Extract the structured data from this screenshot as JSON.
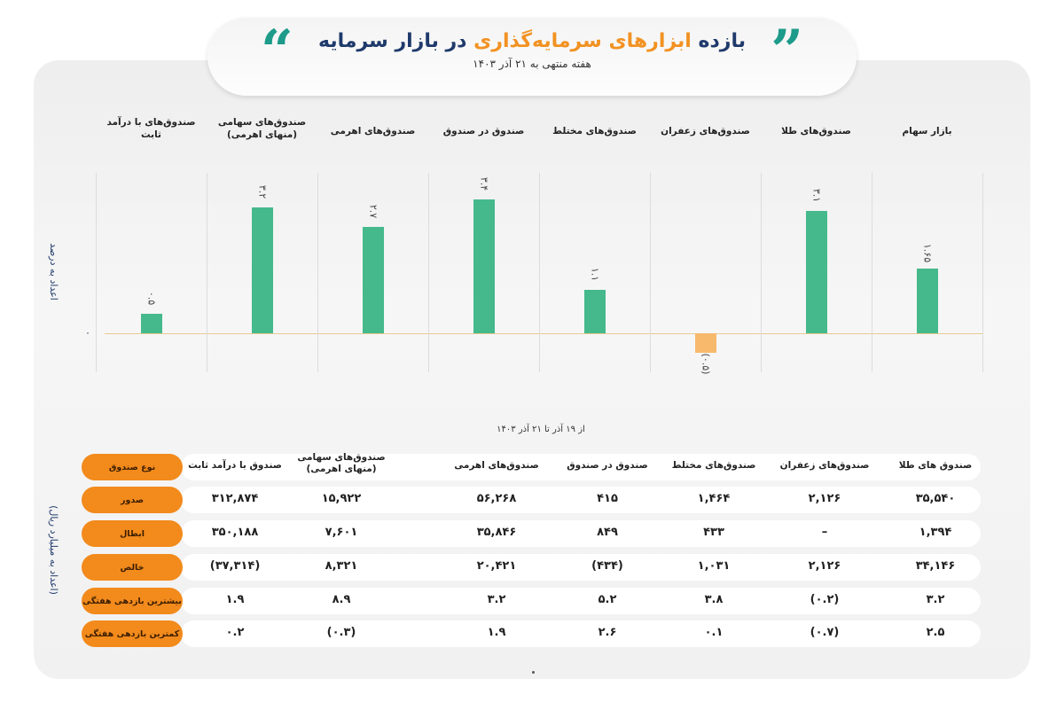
{
  "header": {
    "title_part1": "بازده",
    "title_highlight": "ابزارهای سرمایه‌گذاری",
    "title_part2": "در بازار سرمایه",
    "subtitle": "هفته منتهی به ۲۱ آذر ۱۴۰۳",
    "quote_left": "“",
    "quote_right": "”"
  },
  "chart_data": {
    "type": "bar",
    "title": "بازده ابزارهای سرمایه‌گذاری در بازار سرمایه",
    "ylabel": "اعداد به درصد",
    "zero_tick": "۰",
    "categories": [
      "بازار سهام",
      "صندوق‌های طلا",
      "صندوق‌های زعفران",
      "صندوق‌های مختلط",
      "صندوق در صندوق",
      "صندوق‌های اهرمی",
      "صندوق‌های سهامی (منهای اهرمی)",
      "صندوق‌های با درآمد ثابت"
    ],
    "values": [
      1.65,
      3.1,
      -0.5,
      1.1,
      3.4,
      2.7,
      3.2,
      0.5
    ],
    "value_labels": [
      "۱.۶۵",
      "۳.۱",
      "(۰.۵)",
      "۱.۱",
      "۳.۴",
      "۲.۷",
      "۳.۲",
      "۰.۵"
    ],
    "ylim": [
      -0.8,
      3.6
    ],
    "colors": {
      "positive": "#45b98c",
      "negative": "#f7b96b",
      "zero_line": "#e8c98f"
    }
  },
  "table": {
    "range_label": "از ۱۹ آذر تا ۲۱ آذر ۱۴۰۳",
    "unit_label": "(اعداد به میلیارد ریال)",
    "header_label": "نوع صندوق",
    "columns": [
      "صندوق های طلا",
      "صندوق‌های زعفران",
      "صندوق‌های مختلط",
      "صندوق در صندوق",
      "صندوق‌های اهرمی",
      "صندوق‌های سهامی (منهای اهرمی)",
      "صندوق با درآمد ثابت"
    ],
    "rows": [
      {
        "label": "صدور",
        "values": [
          "۳۵,۵۴۰",
          "۲,۱۲۶",
          "۱,۴۶۴",
          "۴۱۵",
          "۵۶,۲۶۸",
          "۱۵,۹۲۲",
          "۳۱۲,۸۷۴"
        ]
      },
      {
        "label": "ابطال",
        "values": [
          "۱,۳۹۴",
          "–",
          "۴۳۳",
          "۸۴۹",
          "۳۵,۸۴۶",
          "۷,۶۰۱",
          "۳۵۰,۱۸۸"
        ]
      },
      {
        "label": "خالص",
        "values": [
          "۳۴,۱۴۶",
          "۲,۱۲۶",
          "۱,۰۳۱",
          "(۴۳۴)",
          "۲۰,۴۲۱",
          "۸,۳۲۱",
          "(۳۷,۳۱۴)"
        ]
      },
      {
        "label": "بیشترین بازدهی هفتگی",
        "values": [
          "۳.۲",
          "(۰.۲)",
          "۳.۸",
          "۵.۲",
          "۳.۲",
          "۸.۹",
          "۱.۹"
        ]
      },
      {
        "label": "کمترین بازدهی هفتگی",
        "values": [
          "۲.۵",
          "(۰.۷)",
          "۰.۱",
          "۲.۶",
          "۱.۹",
          "(۰.۳)",
          "۰.۲"
        ]
      }
    ],
    "accent": "#f28a1c"
  }
}
